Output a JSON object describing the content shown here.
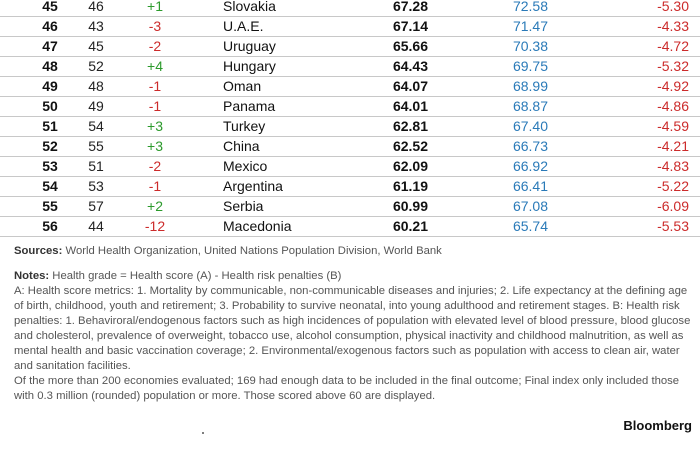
{
  "rows": [
    {
      "rank": "45",
      "prev": "46",
      "change": "+1",
      "change_dir": "pos",
      "country": "Slovakia",
      "score": "67.28",
      "grade": "72.58",
      "penalty": "-5.30"
    },
    {
      "rank": "46",
      "prev": "43",
      "change": "-3",
      "change_dir": "neg",
      "country": "U.A.E.",
      "score": "67.14",
      "grade": "71.47",
      "penalty": "-4.33"
    },
    {
      "rank": "47",
      "prev": "45",
      "change": "-2",
      "change_dir": "neg",
      "country": "Uruguay",
      "score": "65.66",
      "grade": "70.38",
      "penalty": "-4.72"
    },
    {
      "rank": "48",
      "prev": "52",
      "change": "+4",
      "change_dir": "pos",
      "country": "Hungary",
      "score": "64.43",
      "grade": "69.75",
      "penalty": "-5.32"
    },
    {
      "rank": "49",
      "prev": "48",
      "change": "-1",
      "change_dir": "neg",
      "country": "Oman",
      "score": "64.07",
      "grade": "68.99",
      "penalty": "-4.92"
    },
    {
      "rank": "50",
      "prev": "49",
      "change": "-1",
      "change_dir": "neg",
      "country": "Panama",
      "score": "64.01",
      "grade": "68.87",
      "penalty": "-4.86"
    },
    {
      "rank": "51",
      "prev": "54",
      "change": "+3",
      "change_dir": "pos",
      "country": "Turkey",
      "score": "62.81",
      "grade": "67.40",
      "penalty": "-4.59"
    },
    {
      "rank": "52",
      "prev": "55",
      "change": "+3",
      "change_dir": "pos",
      "country": "China",
      "score": "62.52",
      "grade": "66.73",
      "penalty": "-4.21"
    },
    {
      "rank": "53",
      "prev": "51",
      "change": "-2",
      "change_dir": "neg",
      "country": "Mexico",
      "score": "62.09",
      "grade": "66.92",
      "penalty": "-4.83"
    },
    {
      "rank": "54",
      "prev": "53",
      "change": "-1",
      "change_dir": "neg",
      "country": "Argentina",
      "score": "61.19",
      "grade": "66.41",
      "penalty": "-5.22"
    },
    {
      "rank": "55",
      "prev": "57",
      "change": "+2",
      "change_dir": "pos",
      "country": "Serbia",
      "score": "60.99",
      "grade": "67.08",
      "penalty": "-6.09"
    },
    {
      "rank": "56",
      "prev": "44",
      "change": "-12",
      "change_dir": "neg",
      "country": "Macedonia",
      "score": "60.21",
      "grade": "65.74",
      "penalty": "-5.53"
    }
  ],
  "colors": {
    "positive_change": "#2c9a2c",
    "negative_change": "#cc2b2b",
    "grade": "#2a7ab8",
    "penalty": "#cc2b2b",
    "row_divider": "#c8c8c8"
  },
  "footer": {
    "sources_label": "Sources:",
    "sources_text": " World Health Organization, United Nations Population Division, World Bank",
    "notes_label": "Notes:",
    "notes_intro": " Health grade = Health score (A) - Health risk penalties (B)",
    "notes_body": "A: Health score metrics: 1. Mortality by communicable, non-communicable diseases and injuries; 2. Life expectancy at the defining age of birth, childhood, youth and retirement; 3. Probability to survive neonatal, into young adulthood and retirement stages. B: Health risk penalties: 1. Behaviroral/endogenous factors such as high incidences of population with elevated level of blood pressure, blood glucose and cholesterol, prevalence of overweight, tobacco use, alcohol consumption, physical inactivity and childhood malnutrition, as well as mental health and basic vaccination coverage; 2. Environmental/exogenous factors such as population with access to clean air, water and sanitation facilities.",
    "notes_evaluated": "Of the more than 200 economies evaluated; 169 had enough data to be included in the final outcome; Final index only included those with 0.3 million (rounded) population or more. Those scored above 60 are displayed."
  },
  "brand": "Bloomberg"
}
